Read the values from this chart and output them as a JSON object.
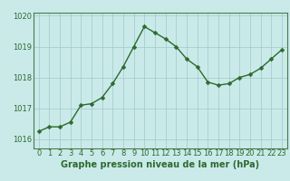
{
  "x": [
    0,
    1,
    2,
    3,
    4,
    5,
    6,
    7,
    8,
    9,
    10,
    11,
    12,
    13,
    14,
    15,
    16,
    17,
    18,
    19,
    20,
    21,
    22,
    23
  ],
  "y": [
    1016.25,
    1016.4,
    1016.4,
    1016.55,
    1017.1,
    1017.15,
    1017.35,
    1017.8,
    1018.35,
    1019.0,
    1019.65,
    1019.45,
    1019.25,
    1019.0,
    1018.6,
    1018.35,
    1017.85,
    1017.75,
    1017.8,
    1018.0,
    1018.1,
    1018.3,
    1018.6,
    1018.9
  ],
  "ylim": [
    1015.7,
    1020.1
  ],
  "yticks": [
    1016,
    1017,
    1018,
    1019,
    1020
  ],
  "xlim": [
    -0.5,
    23.5
  ],
  "xticks": [
    0,
    1,
    2,
    3,
    4,
    5,
    6,
    7,
    8,
    9,
    10,
    11,
    12,
    13,
    14,
    15,
    16,
    17,
    18,
    19,
    20,
    21,
    22,
    23
  ],
  "xlabel": "Graphe pression niveau de la mer (hPa)",
  "line_color": "#2d6a2d",
  "marker_color": "#2d6a2d",
  "bg_color": "#caeaea",
  "grid_color": "#a0c8c8",
  "border_color": "#4a7a4a",
  "xlabel_fontsize": 7,
  "tick_fontsize": 6,
  "marker_size": 2.5,
  "line_width": 1.0
}
